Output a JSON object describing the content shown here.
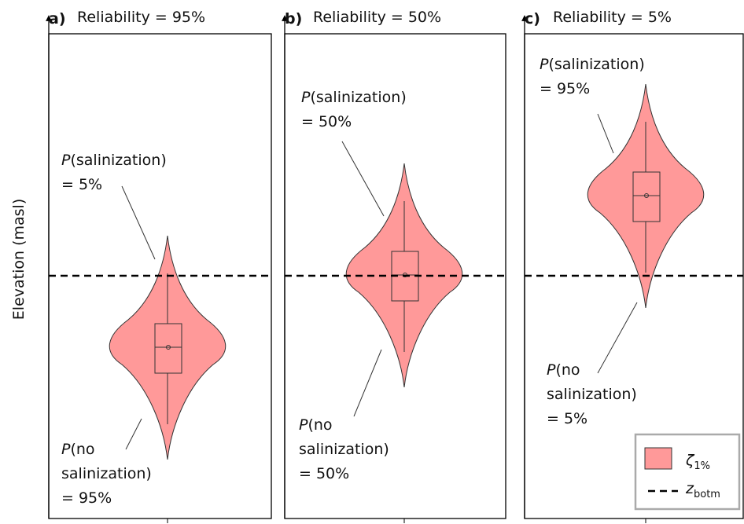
{
  "y_axis_label": "Elevation (masl)",
  "panels": [
    {
      "label": "a)",
      "title": "Reliability = 95%",
      "top_annotation": {
        "var": "P",
        "lines": [
          "(salinization)",
          "= 5%"
        ]
      },
      "bottom_annotation": {
        "var": "P",
        "lines": [
          "(no",
          "salinization)",
          "= 95%"
        ]
      }
    },
    {
      "label": "b)",
      "title": "Reliability = 50%",
      "top_annotation": {
        "var": "P",
        "lines": [
          "(salinization)",
          "= 50%"
        ]
      },
      "bottom_annotation": {
        "var": "P",
        "lines": [
          "(no",
          "salinization)",
          "= 50%"
        ]
      }
    },
    {
      "label": "c)",
      "title": "Reliability = 5%",
      "top_annotation": {
        "var": "P",
        "lines": [
          "(salinization)",
          "= 95%"
        ]
      },
      "bottom_annotation": {
        "var": "P",
        "lines": [
          "(no",
          "salinization)",
          "= 5%"
        ]
      }
    }
  ],
  "legend": [
    {
      "symbol": "ζ",
      "sub": "1%"
    },
    {
      "symbol": "z",
      "sub": "botm"
    }
  ]
}
